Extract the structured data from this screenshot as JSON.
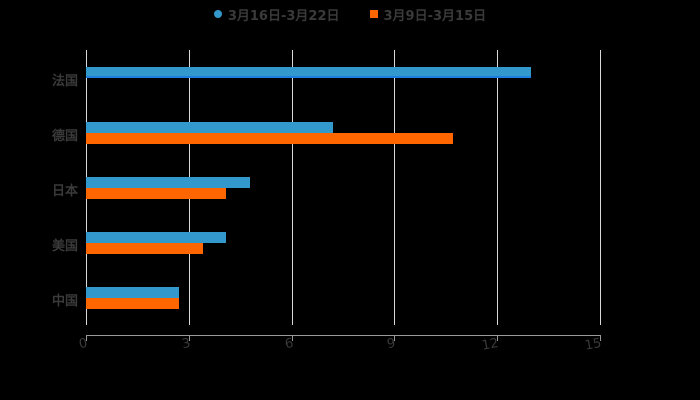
{
  "chart_data": {
    "type": "bar",
    "orientation": "horizontal",
    "title": "",
    "xlabel": "",
    "ylabel": "",
    "categories": [
      "法国",
      "德国",
      "日本",
      "美国",
      "中国"
    ],
    "series": [
      {
        "name": "3月16日-3月22日",
        "color": "#3399cc",
        "marker": "circle",
        "values": [
          13.0,
          7.2,
          4.8,
          4.1,
          2.7
        ]
      },
      {
        "name": "3月9日-3月15日",
        "color": "#ff6600",
        "marker": "square",
        "values": [
          null,
          10.7,
          4.1,
          3.4,
          2.7
        ]
      }
    ],
    "xlim": [
      0,
      15
    ],
    "xticks": [
      0,
      3,
      6,
      9,
      12,
      15
    ],
    "grid": "vertical",
    "legend_position": "top"
  },
  "legend": {
    "items": [
      {
        "label": "3月16日-3月22日",
        "color": "#3399cc"
      },
      {
        "label": "3月9日-3月15日",
        "color": "#ff6600"
      }
    ]
  },
  "axis": {
    "ticks": [
      "0",
      "3",
      "6",
      "9",
      "12",
      "15"
    ]
  },
  "categories": [
    "法国",
    "德国",
    "日本",
    "美国",
    "中国"
  ]
}
